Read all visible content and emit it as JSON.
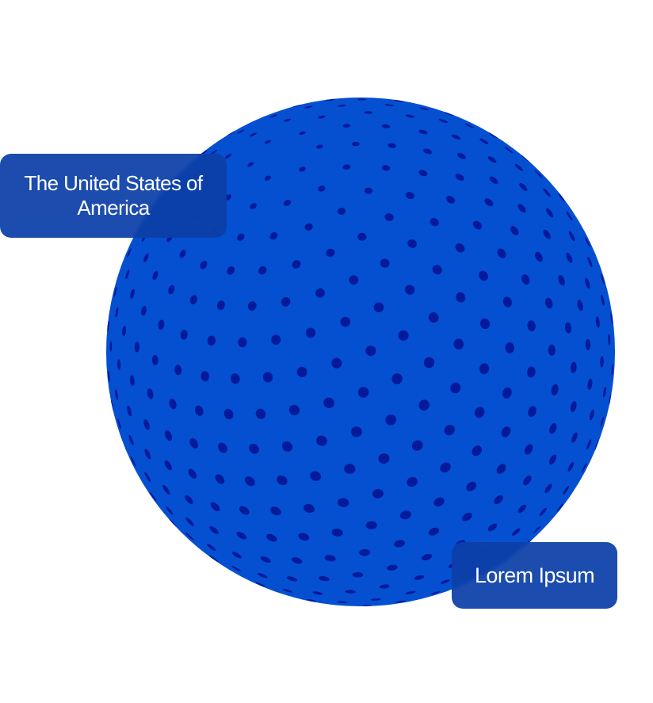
{
  "globe": {
    "name": "dotted-globe",
    "base_color": "#0550d1",
    "dot_color": "#051a9a",
    "card_color": "#0c3fa8"
  },
  "labels": {
    "country": "The United States of America",
    "placeholder": "Lorem Ipsum"
  }
}
